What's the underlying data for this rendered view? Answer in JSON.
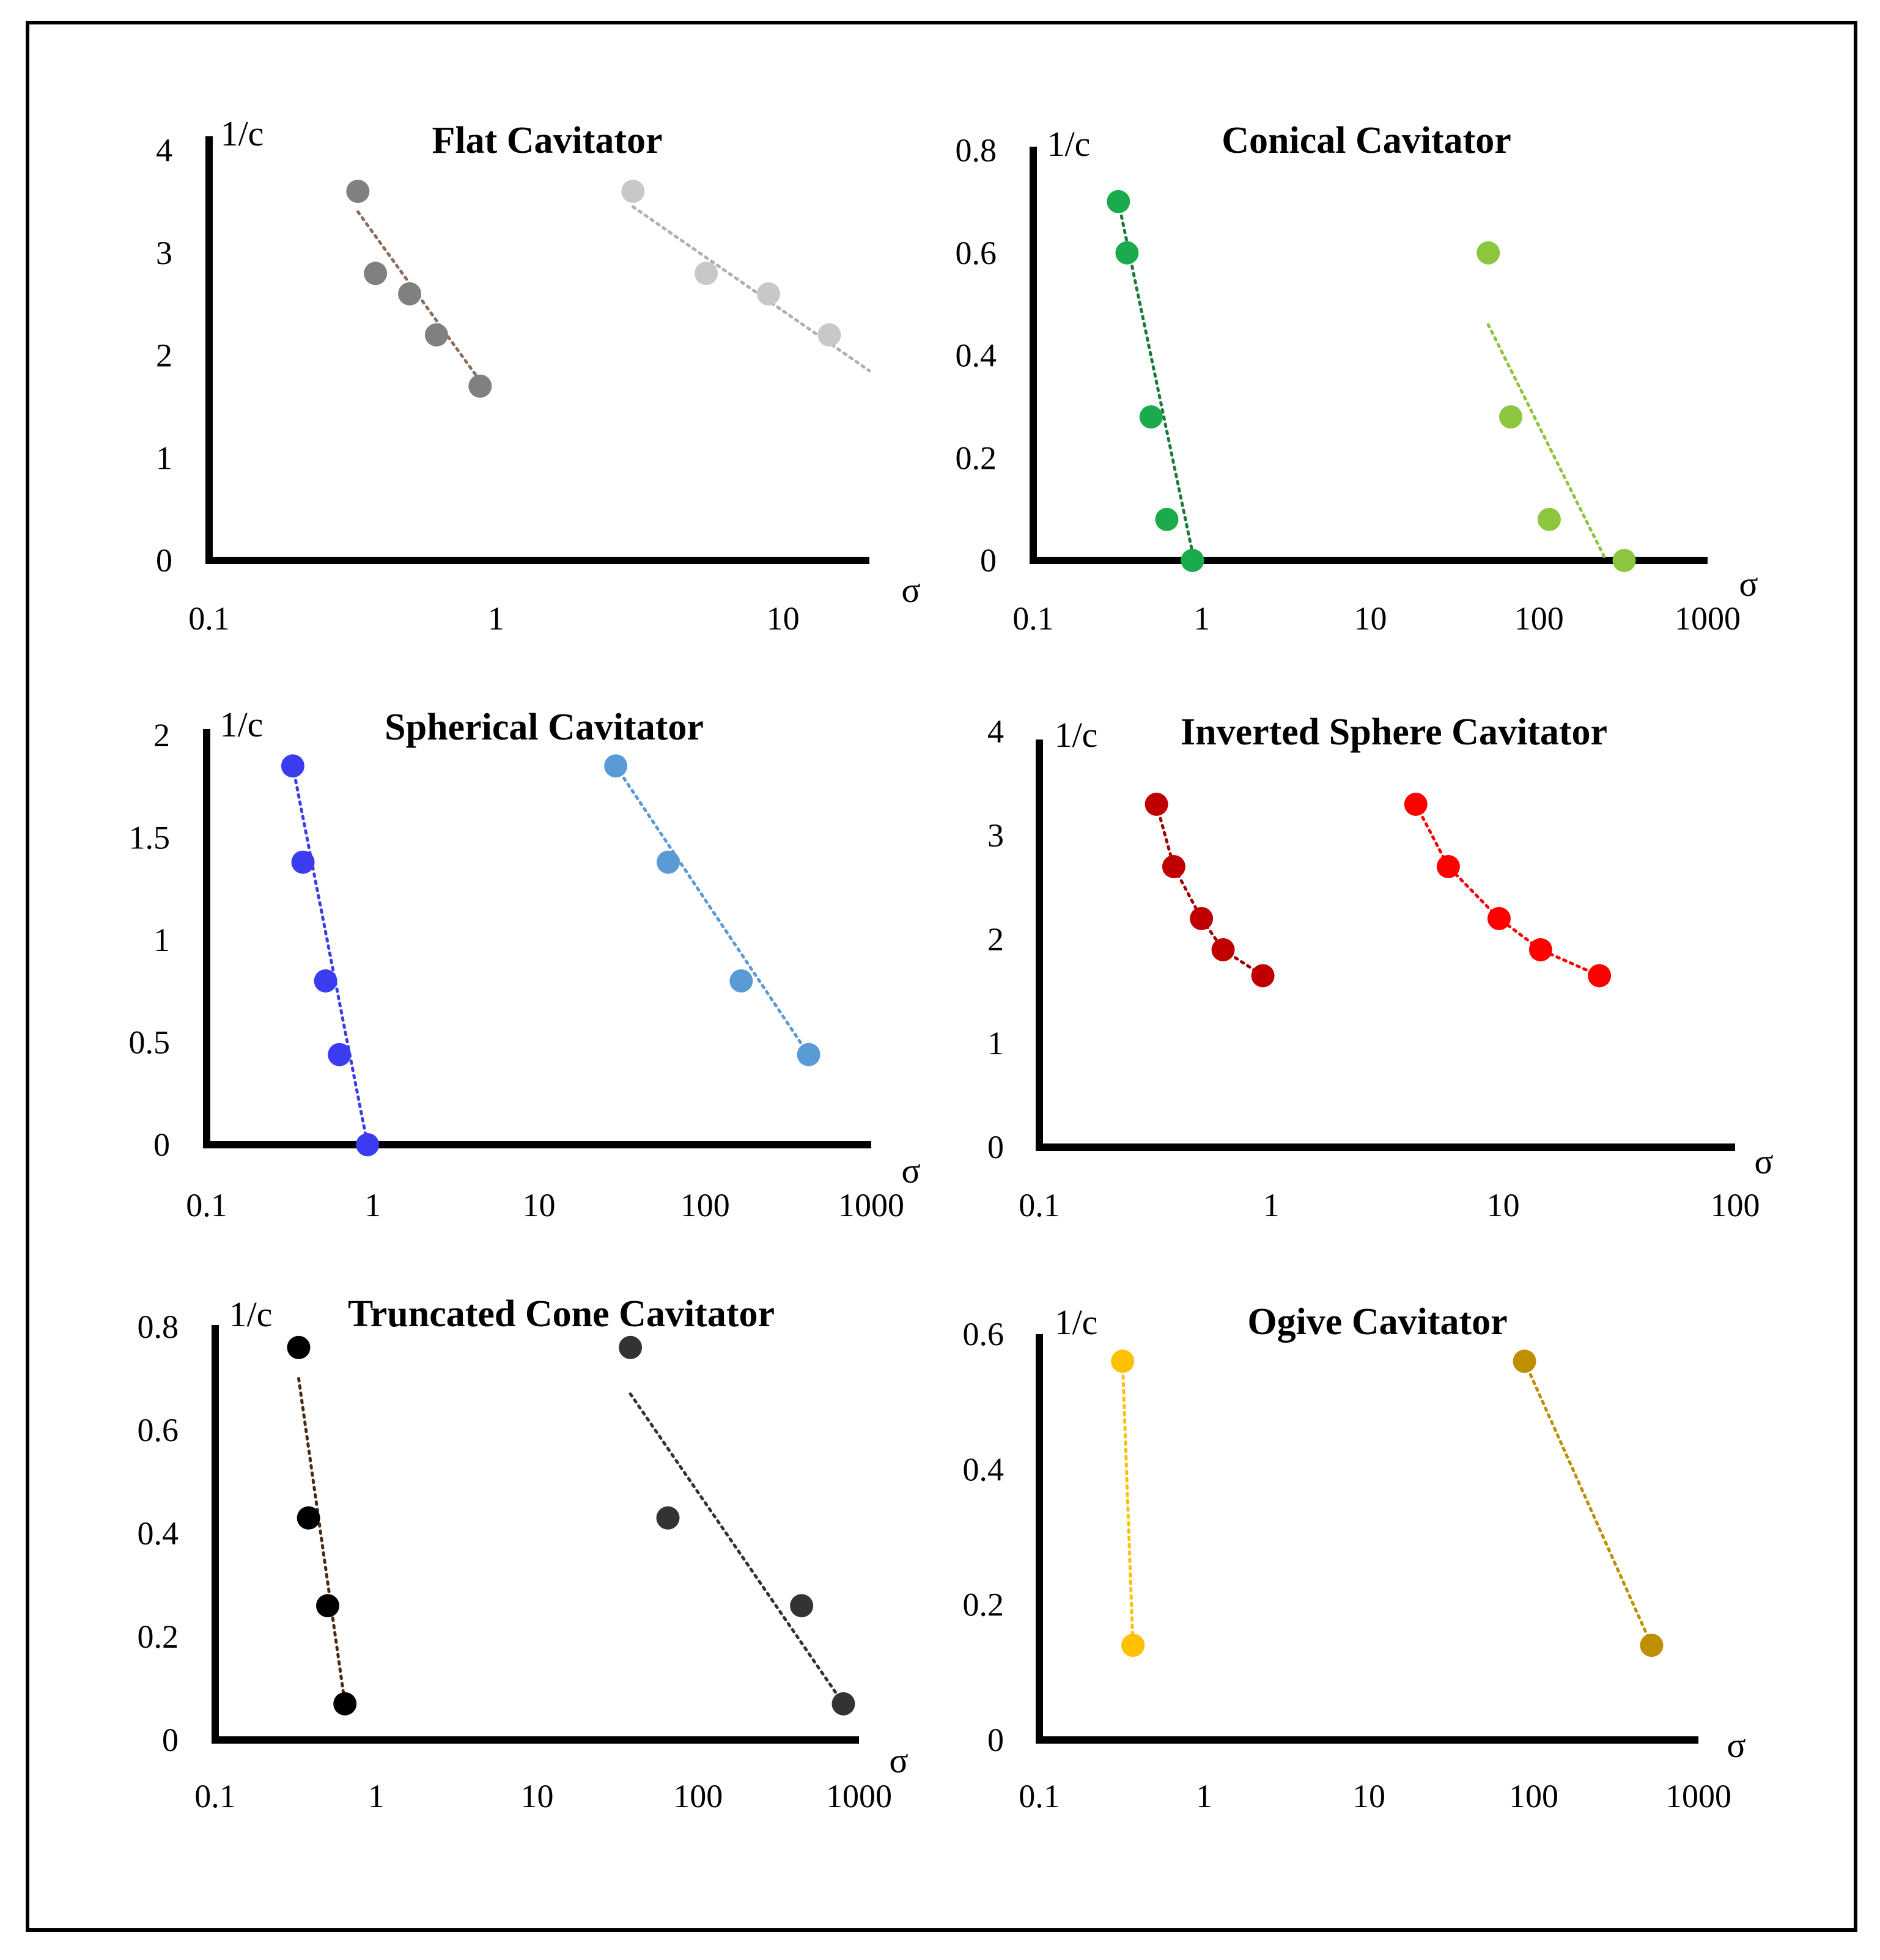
{
  "chart_data": [
    {
      "type": "scatter",
      "title": "Flat Cavitator",
      "xlabel": "σ",
      "ylabel": "1/c",
      "xscale": "log",
      "xlim": [
        0.1,
        20
      ],
      "ylim": [
        0,
        4
      ],
      "xticks": [
        0.1,
        1,
        10
      ],
      "xtick_labels": [
        "0.1",
        "1",
        "10"
      ],
      "yticks": [
        0,
        1,
        2,
        3,
        4
      ],
      "ytick_labels": [
        "0",
        "1",
        "2",
        "3",
        "4"
      ],
      "series": [
        {
          "name": "series-1",
          "color": "#808080",
          "trend_color": "#8c6e5c",
          "x": [
            0.33,
            0.38,
            0.5,
            0.62,
            0.88
          ],
          "y": [
            3.6,
            2.8,
            2.6,
            2.2,
            1.7
          ],
          "trend_x": [
            0.33,
            0.88
          ],
          "trend_y": [
            3.4,
            1.75
          ]
        },
        {
          "name": "series-2",
          "color": "#c8c8c8",
          "trend_color": "#b0b0b0",
          "x": [
            3.0,
            5.4,
            8.9,
            14.5
          ],
          "y": [
            3.6,
            2.8,
            2.6,
            2.2
          ],
          "trend_x": [
            3.0,
            20
          ],
          "trend_y": [
            3.45,
            1.85
          ]
        }
      ]
    },
    {
      "type": "scatter",
      "title": "Conical Cavitator",
      "xlabel": "σ",
      "ylabel": "1/c",
      "xscale": "log",
      "xlim": [
        0.1,
        1000
      ],
      "ylim": [
        0,
        0.8
      ],
      "xticks": [
        0.1,
        1,
        10,
        100,
        1000
      ],
      "xtick_labels": [
        "0.1",
        "1",
        "10",
        "100",
        "1000"
      ],
      "yticks": [
        0,
        0.2,
        0.4,
        0.6,
        0.8
      ],
      "ytick_labels": [
        "0",
        "0.2",
        "0.4",
        "0.6",
        "0.8"
      ],
      "series": [
        {
          "name": "series-1",
          "color": "#1aab4c",
          "trend_color": "#1a7a3a",
          "x": [
            0.32,
            0.36,
            0.5,
            0.62,
            0.88
          ],
          "y": [
            0.7,
            0.6,
            0.28,
            0.08,
            0.0
          ],
          "trend_x": [
            0.32,
            0.9
          ],
          "trend_y": [
            0.7,
            0.0
          ]
        },
        {
          "name": "series-2",
          "color": "#8cc63f",
          "trend_color": "#8cc63f",
          "x": [
            50,
            68,
            115,
            320
          ],
          "y": [
            0.6,
            0.28,
            0.08,
            0.0
          ],
          "trend_x": [
            50,
            250
          ],
          "trend_y": [
            0.46,
            0.0
          ]
        }
      ]
    },
    {
      "type": "scatter",
      "title": "Spherical Cavitator",
      "xlabel": "σ",
      "ylabel": "1/c",
      "xscale": "log",
      "xlim": [
        0.1,
        1000
      ],
      "ylim": [
        0,
        2
      ],
      "xticks": [
        0.1,
        1,
        10,
        100,
        1000
      ],
      "xtick_labels": [
        "0.1",
        "1",
        "10",
        "100",
        "1000"
      ],
      "yticks": [
        0,
        0.5,
        1,
        1.5,
        2
      ],
      "ytick_labels": [
        "0",
        "0.5",
        "1",
        "1.5",
        "2"
      ],
      "series": [
        {
          "name": "series-1",
          "color": "#3b3bf0",
          "trend_color": "#3b3bf0",
          "x": [
            0.33,
            0.38,
            0.52,
            0.63,
            0.93
          ],
          "y": [
            1.85,
            1.38,
            0.8,
            0.44,
            0.0
          ],
          "trend_x": [
            0.33,
            0.93
          ],
          "trend_y": [
            1.85,
            0.0
          ]
        },
        {
          "name": "series-2",
          "color": "#5b9bd5",
          "trend_color": "#5b9bd5",
          "x": [
            29,
            60,
            165,
            420
          ],
          "y": [
            1.85,
            1.38,
            0.8,
            0.44
          ],
          "trend_x": [
            29,
            420
          ],
          "trend_y": [
            1.85,
            0.44
          ]
        }
      ]
    },
    {
      "type": "scatter",
      "title": "Inverted Sphere Cavitator",
      "xlabel": "σ",
      "ylabel": "1/c",
      "xscale": "log",
      "xlim": [
        0.1,
        100
      ],
      "ylim": [
        0,
        4
      ],
      "xticks": [
        0.1,
        1,
        10,
        100
      ],
      "xtick_labels": [
        "0.1",
        "1",
        "10",
        "100"
      ],
      "yticks": [
        0,
        1,
        2,
        3,
        4
      ],
      "ytick_labels": [
        "0",
        "1",
        "2",
        "3",
        "4"
      ],
      "series": [
        {
          "name": "series-1",
          "color": "#c00000",
          "trend_color": "#a00000",
          "x": [
            0.32,
            0.38,
            0.5,
            0.62,
            0.92
          ],
          "y": [
            3.3,
            2.7,
            2.2,
            1.9,
            1.65
          ],
          "trend_x": [
            0.32,
            0.38,
            0.5,
            0.62,
            0.92
          ],
          "trend_y": [
            3.3,
            2.7,
            2.2,
            1.9,
            1.65
          ]
        },
        {
          "name": "series-2",
          "color": "#ff0000",
          "trend_color": "#ff0000",
          "x": [
            4.2,
            5.8,
            9.6,
            14.5,
            26
          ],
          "y": [
            3.3,
            2.7,
            2.2,
            1.9,
            1.65
          ],
          "trend_x": [
            4.2,
            5.8,
            9.6,
            14.5,
            26
          ],
          "trend_y": [
            3.3,
            2.7,
            2.2,
            1.9,
            1.65
          ]
        }
      ]
    },
    {
      "type": "scatter",
      "title": "Truncated Cone Cavitator",
      "xlabel": "σ",
      "ylabel": "1/c",
      "xscale": "log",
      "xlim": [
        0.1,
        1000
      ],
      "ylim": [
        0,
        0.8
      ],
      "xticks": [
        0.1,
        1,
        10,
        100,
        1000
      ],
      "xtick_labels": [
        "0.1",
        "1",
        "10",
        "100",
        "1000"
      ],
      "yticks": [
        0,
        0.2,
        0.4,
        0.6,
        0.8
      ],
      "ytick_labels": [
        "0",
        "0.2",
        "0.4",
        "0.6",
        "0.8"
      ],
      "series": [
        {
          "name": "series-1",
          "color": "#000000",
          "trend_color": "#4a2a10",
          "x": [
            0.33,
            0.38,
            0.5,
            0.64
          ],
          "y": [
            0.76,
            0.43,
            0.26,
            0.07
          ],
          "trend_x": [
            0.33,
            0.64
          ],
          "trend_y": [
            0.7,
            0.07
          ]
        },
        {
          "name": "series-2",
          "color": "#333333",
          "trend_color": "#333333",
          "x": [
            38,
            65,
            440,
            800
          ],
          "y": [
            0.76,
            0.43,
            0.26,
            0.07
          ],
          "trend_x": [
            38,
            800
          ],
          "trend_y": [
            0.67,
            0.07
          ]
        }
      ]
    },
    {
      "type": "scatter",
      "title": "Ogive Cavitator",
      "xlabel": "σ",
      "ylabel": "1/c",
      "xscale": "log",
      "xlim": [
        0.1,
        1000
      ],
      "ylim": [
        0,
        0.6
      ],
      "xticks": [
        0.1,
        1,
        10,
        100,
        1000
      ],
      "xtick_labels": [
        "0.1",
        "1",
        "10",
        "100",
        "1000"
      ],
      "yticks": [
        0,
        0.2,
        0.4,
        0.6
      ],
      "ytick_labels": [
        "0",
        "0.2",
        "0.4",
        "0.6"
      ],
      "series": [
        {
          "name": "series-1",
          "color": "#ffc000",
          "trend_color": "#ffc000",
          "x": [
            0.32,
            0.37
          ],
          "y": [
            0.56,
            0.14
          ],
          "trend_x": [
            0.32,
            0.37
          ],
          "trend_y": [
            0.56,
            0.14
          ]
        },
        {
          "name": "series-2",
          "color": "#bf8f00",
          "trend_color": "#bf8f00",
          "x": [
            88,
            520
          ],
          "y": [
            0.56,
            0.14
          ],
          "trend_x": [
            88,
            520
          ],
          "trend_y": [
            0.56,
            0.14
          ]
        }
      ]
    }
  ]
}
